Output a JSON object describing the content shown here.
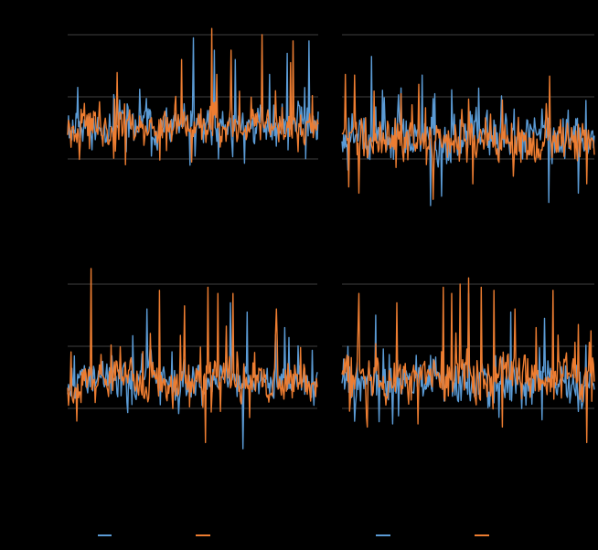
{
  "chart_data": [
    {
      "type": "line",
      "title": "",
      "grid": true,
      "legend": "bottom-left",
      "ylim": [
        0,
        3
      ],
      "gridlines": [
        1,
        2,
        3
      ],
      "x": {
        "count": 300
      },
      "series": [
        {
          "color_key": "blue",
          "color": "#5b9bd5",
          "seed": 11,
          "base": 1.55,
          "noise": 0.22,
          "spikes": [
            [
              150,
              2.95
            ],
            [
              175,
              2.75
            ],
            [
              200,
              2.6
            ],
            [
              262,
              2.7
            ],
            [
              288,
              2.9
            ]
          ],
          "dips": [
            [
              146,
              0.9
            ],
            [
              180,
              1.0
            ]
          ]
        },
        {
          "color_key": "orange",
          "color": "#ed7d31",
          "seed": 23,
          "base": 1.5,
          "noise": 0.2,
          "spikes": [
            [
              136,
              2.6
            ],
            [
              172,
              3.1
            ],
            [
              195,
              2.75
            ],
            [
              232,
              3.0
            ],
            [
              266,
              2.55
            ],
            [
              269,
              2.9
            ]
          ],
          "dips": [
            [
              148,
              0.95
            ]
          ]
        }
      ]
    },
    {
      "type": "line",
      "title": "",
      "grid": true,
      "legend": "bottom-left",
      "ylim": [
        0,
        3
      ],
      "gridlines": [
        1,
        2,
        3
      ],
      "x": {
        "count": 300
      },
      "series": [
        {
          "color_key": "blue",
          "color": "#5b9bd5",
          "seed": 37,
          "base": 1.35,
          "noise": 0.28,
          "spikes": [
            [
              35,
              2.65
            ],
            [
              95,
              2.35
            ],
            [
              110,
              2.05
            ]
          ],
          "dips": [
            [
              105,
              0.25
            ],
            [
              118,
              0.4
            ],
            [
              245,
              0.3
            ],
            [
              280,
              0.45
            ]
          ]
        },
        {
          "color_key": "orange",
          "color": "#ed7d31",
          "seed": 41,
          "base": 1.3,
          "noise": 0.26,
          "spikes": [
            [
              15,
              2.35
            ],
            [
              70,
              2.05
            ],
            [
              190,
              1.95
            ]
          ],
          "dips": [
            [
              8,
              0.55
            ],
            [
              20,
              0.45
            ],
            [
              108,
              0.35
            ],
            [
              155,
              0.6
            ],
            [
              290,
              0.6
            ]
          ]
        }
      ]
    },
    {
      "type": "line",
      "title": "",
      "grid": true,
      "legend": "bottom-left",
      "ylim": [
        0,
        3
      ],
      "gridlines": [
        1,
        2,
        3
      ],
      "x": {
        "count": 300
      },
      "series": [
        {
          "color_key": "blue",
          "color": "#5b9bd5",
          "seed": 53,
          "base": 1.45,
          "noise": 0.22,
          "spikes": [
            [
              95,
              2.6
            ],
            [
              195,
              2.7
            ],
            [
              215,
              2.55
            ],
            [
              260,
              2.3
            ]
          ],
          "dips": [
            [
              210,
              0.35
            ],
            [
              295,
              1.05
            ]
          ]
        },
        {
          "color_key": "orange",
          "color": "#ed7d31",
          "seed": 67,
          "base": 1.45,
          "noise": 0.21,
          "spikes": [
            [
              28,
              3.25
            ],
            [
              110,
              2.9
            ],
            [
              140,
              2.65
            ],
            [
              168,
              2.95
            ],
            [
              180,
              2.85
            ],
            [
              198,
              2.85
            ],
            [
              250,
              2.6
            ]
          ],
          "dips": [
            [
              165,
              0.45
            ],
            [
              183,
              0.95
            ]
          ]
        }
      ]
    },
    {
      "type": "line",
      "title": "",
      "grid": true,
      "legend": "bottom-left",
      "ylim": [
        0,
        3
      ],
      "gridlines": [
        1,
        2,
        3
      ],
      "x": {
        "count": 300
      },
      "series": [
        {
          "color_key": "blue",
          "color": "#5b9bd5",
          "seed": 71,
          "base": 1.4,
          "noise": 0.24,
          "spikes": [
            [
              40,
              2.5
            ],
            [
              150,
              2.85
            ],
            [
              200,
              2.55
            ],
            [
              240,
              2.45
            ]
          ],
          "dips": [
            [
              60,
              0.75
            ],
            [
              280,
              0.95
            ]
          ]
        },
        {
          "color_key": "orange",
          "color": "#ed7d31",
          "seed": 83,
          "base": 1.5,
          "noise": 0.27,
          "spikes": [
            [
              20,
              2.85
            ],
            [
              65,
              2.7
            ],
            [
              120,
              2.95
            ],
            [
              130,
              2.85
            ],
            [
              140,
              3.0
            ],
            [
              150,
              3.1
            ],
            [
              165,
              2.95
            ],
            [
              180,
              2.9
            ],
            [
              205,
              2.6
            ],
            [
              230,
              2.3
            ],
            [
              250,
              2.9
            ],
            [
              280,
              2.35
            ]
          ],
          "dips": [
            [
              30,
              0.7
            ],
            [
              90,
              0.75
            ],
            [
              190,
              0.7
            ],
            [
              290,
              0.45
            ]
          ]
        }
      ]
    }
  ],
  "legends": [
    {
      "items": [
        {
          "color": "#5b9bd5",
          "label": ""
        },
        {
          "color": "#ed7d31",
          "label": ""
        }
      ]
    },
    {
      "items": [
        {
          "color": "#5b9bd5",
          "label": ""
        },
        {
          "color": "#ed7d31",
          "label": ""
        }
      ]
    }
  ]
}
